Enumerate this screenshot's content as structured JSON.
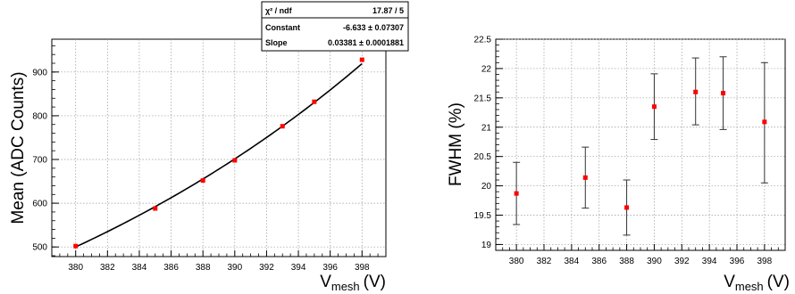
{
  "chart_data": [
    {
      "type": "scatter",
      "xlabel": "V",
      "xlabel_subscript": "mesh",
      "xlabel_unit": "(V)",
      "ylabel": "Mean (ADC Counts)",
      "xlim": [
        378.5,
        399.5
      ],
      "ylim": [
        478,
        975
      ],
      "x_ticks": [
        380,
        382,
        384,
        386,
        388,
        390,
        392,
        394,
        396,
        398
      ],
      "y_ticks": [
        500,
        600,
        700,
        800,
        900
      ],
      "grid": true,
      "series": [
        {
          "x": [
            380,
            385,
            388,
            390,
            393,
            395,
            398
          ],
          "y": [
            502,
            588,
            652,
            698,
            776,
            832,
            928
          ],
          "marker_color": "#ff0000"
        }
      ],
      "fit": {
        "function": "exponential",
        "constant": -6.633,
        "slope": 0.03381,
        "x_range": [
          380,
          398
        ],
        "line_color": "#000000"
      },
      "stats_box": {
        "rows": [
          {
            "label": "χ² / ndf",
            "value": "17.87 / 5"
          },
          {
            "label": "Constant",
            "value": "-6.633 ± 0.07307"
          },
          {
            "label": "Slope",
            "value": "0.03381 ± 0.0001881"
          }
        ]
      }
    },
    {
      "type": "scatter",
      "xlabel": "V",
      "xlabel_subscript": "mesh",
      "xlabel_unit": "(V)",
      "ylabel": "FWHM (%)",
      "xlim": [
        378.5,
        399.5
      ],
      "ylim": [
        18.9,
        22.5
      ],
      "x_ticks": [
        380,
        382,
        384,
        386,
        388,
        390,
        392,
        394,
        396,
        398
      ],
      "y_ticks": [
        19,
        19.5,
        20,
        20.5,
        21,
        21.5,
        22,
        22.5
      ],
      "grid": true,
      "series": [
        {
          "x": [
            380,
            385,
            388,
            390,
            393,
            395,
            398
          ],
          "y": [
            19.87,
            20.14,
            19.63,
            21.35,
            21.6,
            21.58,
            21.09
          ],
          "err_low": [
            0.53,
            0.52,
            0.47,
            0.56,
            0.56,
            0.62,
            1.04
          ],
          "err_high": [
            0.53,
            0.52,
            0.47,
            0.56,
            0.58,
            0.62,
            1.01
          ],
          "marker_color": "#ff0000"
        }
      ]
    }
  ]
}
